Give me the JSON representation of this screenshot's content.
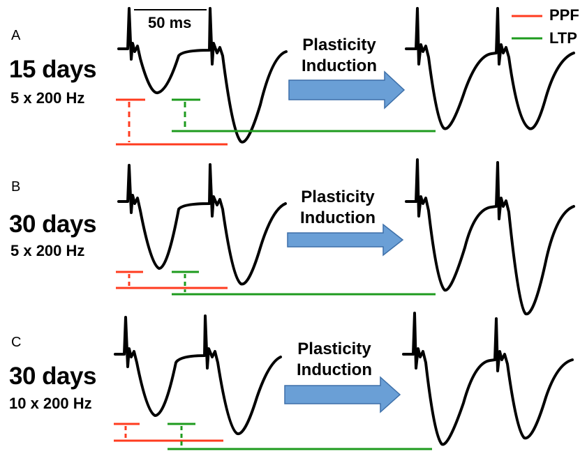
{
  "scale_bar": {
    "label": "50 ms"
  },
  "legend": {
    "items": [
      {
        "label": "PPF",
        "color": "#ff3b1f"
      },
      {
        "label": "LTP",
        "color": "#1e9b1e"
      }
    ]
  },
  "panels": [
    {
      "letter": "A",
      "age": "15 days",
      "stim": "5 x 200 Hz",
      "arrow_line1": "Plasticity",
      "arrow_line2": "Induction"
    },
    {
      "letter": "B",
      "age": "30 days",
      "stim": "5 x 200 Hz",
      "arrow_line1": "Plasticity",
      "arrow_line2": "Induction"
    },
    {
      "letter": "C",
      "age": "30 days",
      "stim": "10 x 200 Hz",
      "arrow_line1": "Plasticity",
      "arrow_line2": "Induction"
    }
  ],
  "colors": {
    "trace": "#000000",
    "arrow_fill": "#6a9fd6",
    "arrow_stroke": "#3d6fa8",
    "ppf": "#ff3b1f",
    "ltp": "#1e9b1e"
  }
}
